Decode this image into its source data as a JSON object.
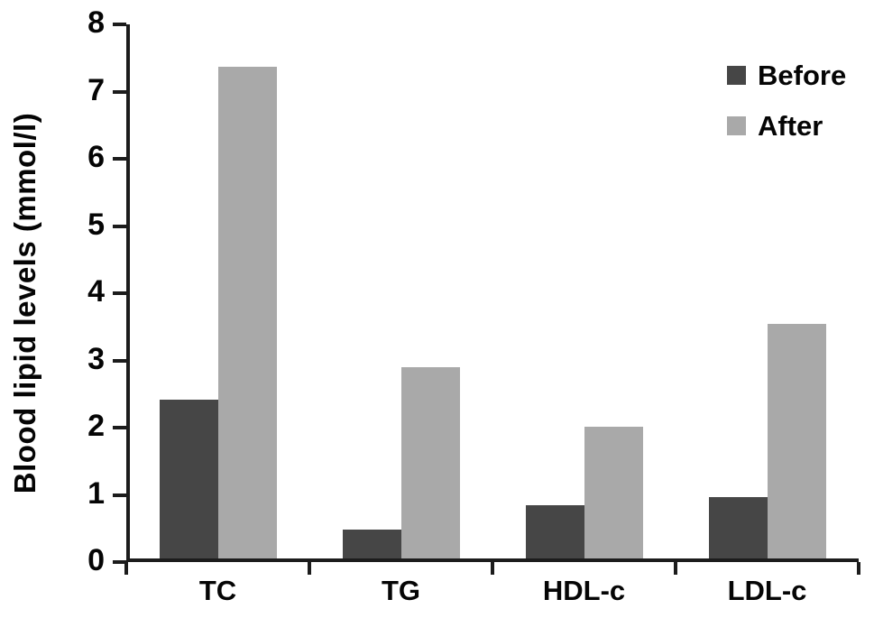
{
  "chart_data": {
    "type": "bar",
    "title": "",
    "xlabel": "",
    "ylabel": "Blood lipid levels (mmol/l)",
    "categories": [
      "TC",
      "TG",
      "HDL-c",
      "LDL-c"
    ],
    "series": [
      {
        "name": "Before",
        "color": "#464646",
        "values": [
          2.42,
          0.48,
          0.85,
          0.97
        ]
      },
      {
        "name": "After",
        "color": "#a9a9a9",
        "values": [
          7.37,
          2.9,
          2.02,
          3.54
        ]
      }
    ],
    "ylim": [
      0,
      8
    ],
    "yticks": [
      0,
      1,
      2,
      3,
      4,
      5,
      6,
      7,
      8
    ],
    "grid": false,
    "legend_position": "top-right",
    "background": "#ffffff",
    "axis_color": "#1c1c1c",
    "text_color": "#050505"
  }
}
